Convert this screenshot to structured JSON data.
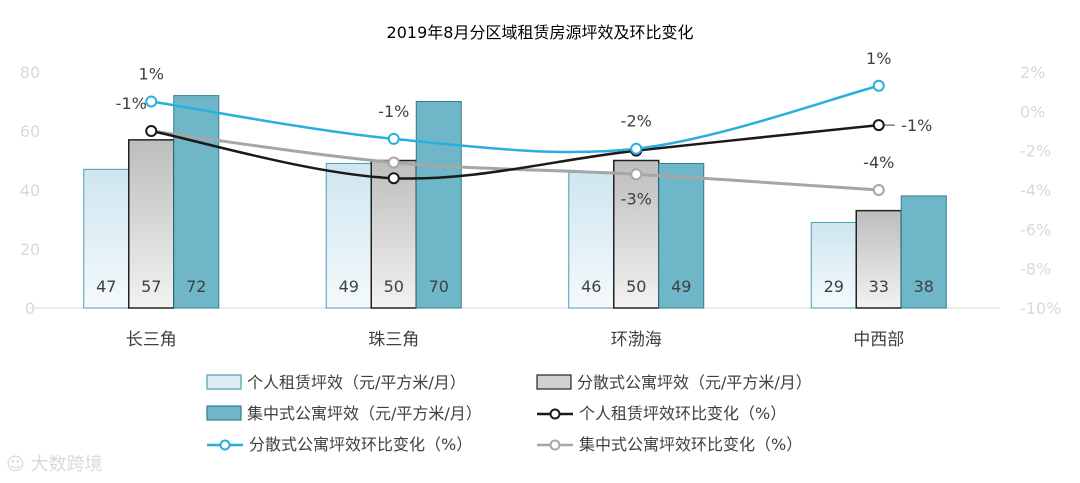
{
  "chart_data": {
    "type": "bar",
    "title": "2019年8月分区域租赁房源坪效及环比变化",
    "categories": [
      "长三角",
      "珠三角",
      "环渤海",
      "中西部"
    ],
    "left_axis": {
      "min": 0,
      "max": 80,
      "ticks": [
        "0",
        "20",
        "40",
        "60",
        "80"
      ],
      "tick_values": [
        0,
        20,
        40,
        60,
        80
      ]
    },
    "right_axis": {
      "min": -10,
      "max": 2,
      "ticks": [
        "-10%",
        "-8%",
        "-6%",
        "-4%",
        "-2%",
        "0%",
        "2%"
      ],
      "tick_values": [
        -10,
        -8,
        -6,
        -4,
        -2,
        0,
        2
      ]
    },
    "bar_series": [
      {
        "name": "个人租赁坪效（元/平方米/月）",
        "values": [
          47,
          49,
          46,
          29
        ],
        "labels": [
          "47",
          "49",
          "46",
          "29"
        ],
        "color": "#dcedf5"
      },
      {
        "name": "分散式公寓坪效（元/平方米/月）",
        "values": [
          57,
          50,
          50,
          33
        ],
        "labels": [
          "57",
          "50",
          "50",
          "33"
        ],
        "color": "#d0d0d0"
      },
      {
        "name": "集中式公寓坪效（元/平方米/月）",
        "values": [
          72,
          70,
          49,
          38
        ],
        "labels": [
          "72",
          "70",
          "49",
          "38"
        ],
        "color": "#6fb7c8"
      }
    ],
    "line_series": [
      {
        "name": "个人租赁坪效环比变化（%）",
        "values": [
          -1,
          -3.4,
          -2,
          -0.7
        ],
        "labels": [
          "-1%",
          "",
          "",
          "-1%"
        ],
        "color": "#1a1a1a"
      },
      {
        "name": "分散式公寓坪效环比变化（%）",
        "values": [
          0.5,
          -1.4,
          -1.9,
          1.3
        ],
        "labels": [
          "1%",
          "-1%",
          "-2%",
          "1%"
        ],
        "color": "#2aaede"
      },
      {
        "name": "集中式公寓坪效环比变化（%）",
        "values": [
          -1,
          -2.6,
          -3.2,
          -4
        ],
        "labels": [
          "",
          "",
          "-3%",
          "-4%"
        ],
        "color": "#a6a6a6"
      }
    ]
  },
  "watermark": "大数跨境"
}
